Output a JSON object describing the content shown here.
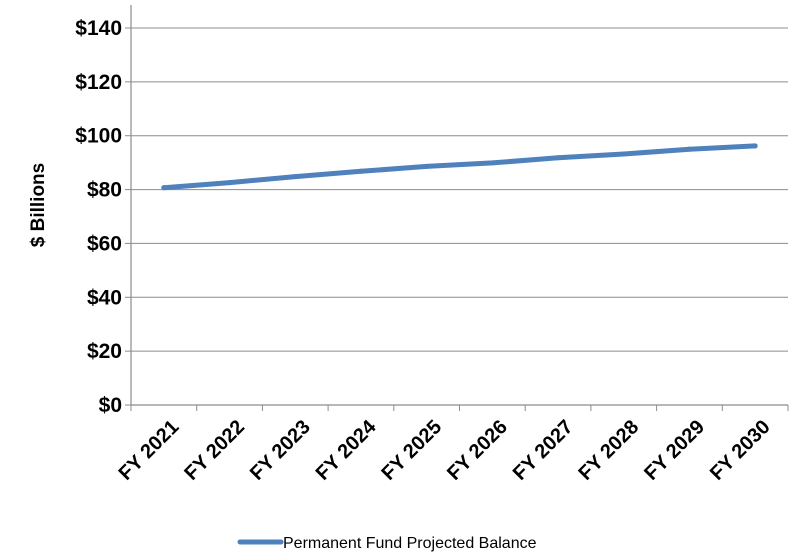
{
  "chart_data": {
    "type": "line",
    "title": "",
    "xlabel": "",
    "ylabel": "$ Billions",
    "categories": [
      "FY 2021",
      "FY 2022",
      "FY 2023",
      "FY 2024",
      "FY 2025",
      "FY 2026",
      "FY 2027",
      "FY 2028",
      "FY 2029",
      "FY 2030"
    ],
    "series": [
      {
        "name": "Permanent Fund Projected Balance",
        "color": "#4f81bd",
        "values": [
          80.7,
          82.6,
          84.8,
          86.8,
          88.6,
          89.9,
          91.8,
          93.2,
          95.0,
          96.2
        ]
      }
    ],
    "ylim": [
      0,
      140
    ],
    "yticks": [
      0,
      20,
      40,
      60,
      80,
      100,
      120,
      140
    ],
    "ytick_labels": [
      "$0",
      "$20",
      "$40",
      "$60",
      "$80",
      "$100",
      "$120",
      "$140"
    ],
    "grid": "horizontal",
    "legend_position": "bottom"
  }
}
